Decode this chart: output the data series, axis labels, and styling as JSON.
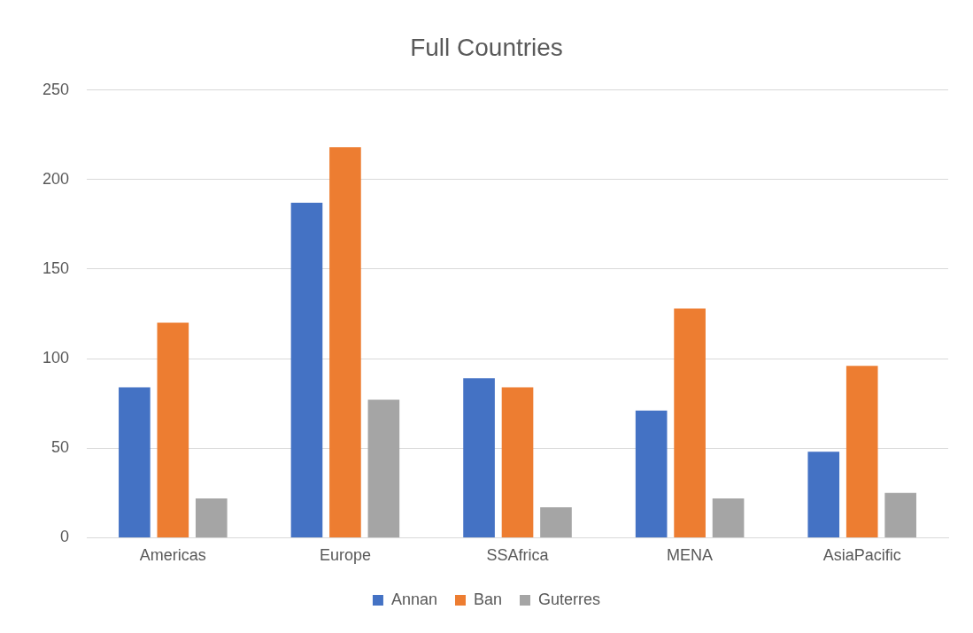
{
  "chart_data": {
    "type": "bar",
    "title": "Full Countries",
    "categories": [
      "Americas",
      "Europe",
      "SSAfrica",
      "MENA",
      "AsiaPacific"
    ],
    "series": [
      {
        "name": "Annan",
        "color": "#4472c4",
        "values": [
          84,
          187,
          89,
          71,
          48
        ]
      },
      {
        "name": "Ban",
        "color": "#ed7d31",
        "values": [
          120,
          218,
          84,
          128,
          96
        ]
      },
      {
        "name": "Guterres",
        "color": "#a5a5a5",
        "values": [
          22,
          77,
          17,
          22,
          25
        ]
      }
    ],
    "ylim": [
      0,
      250
    ],
    "yticks": [
      0,
      50,
      100,
      150,
      200,
      250
    ],
    "grid": "y",
    "legend": "bottom"
  }
}
